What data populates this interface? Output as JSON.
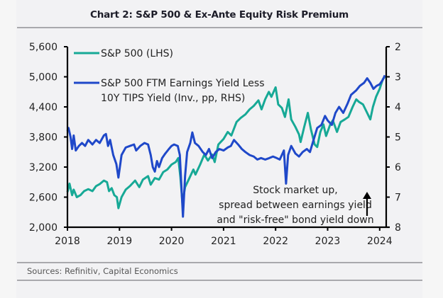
{
  "title": "Chart 2: S&P 500 & Ex-Ante Equity Risk Premium",
  "sources": "Sources: Refinitiv, Capital Economics",
  "chart_data": {
    "type": "line",
    "title": "Chart 2: S&P 500 & Ex-Ante Equity Risk Premium",
    "xlabel": "",
    "ylabel_left": "",
    "ylabel_right": "",
    "xlim": [
      2018.0,
      2024.15
    ],
    "x_ticks": [
      2018,
      2019,
      2020,
      2021,
      2022,
      2023,
      2024
    ],
    "x_tick_labels": [
      "2018",
      "2019",
      "2020",
      "2021",
      "2022",
      "2023",
      "2024"
    ],
    "ylim_left": [
      2000,
      5600
    ],
    "y_ticks_left": [
      2000,
      2600,
      3200,
      3800,
      4400,
      5000,
      5600
    ],
    "y_tick_labels_left": [
      "2,000",
      "2,600",
      "3,200",
      "3,800",
      "4,400",
      "5,000",
      "5,600"
    ],
    "ylim_right": [
      8,
      2
    ],
    "right_axis_inverted": true,
    "y_ticks_right": [
      2,
      3,
      4,
      5,
      6,
      7,
      8
    ],
    "y_tick_labels_right": [
      "2",
      "3",
      "4",
      "5",
      "6",
      "7",
      "8"
    ],
    "grid": false,
    "legend_position": "top-left",
    "series": [
      {
        "name": "S&P 500 (LHS)",
        "axis": "left",
        "color": "#17a996",
        "x": [
          2018.0,
          2018.04,
          2018.09,
          2018.12,
          2018.18,
          2018.25,
          2018.32,
          2018.4,
          2018.48,
          2018.55,
          2018.62,
          2018.7,
          2018.76,
          2018.8,
          2018.85,
          2018.9,
          2018.95,
          2018.98,
          2019.04,
          2019.12,
          2019.2,
          2019.3,
          2019.38,
          2019.45,
          2019.55,
          2019.6,
          2019.68,
          2019.76,
          2019.84,
          2019.92,
          2020.0,
          2020.08,
          2020.13,
          2020.17,
          2020.21,
          2020.26,
          2020.33,
          2020.42,
          2020.46,
          2020.55,
          2020.63,
          2020.7,
          2020.78,
          2020.83,
          2020.9,
          2021.0,
          2021.08,
          2021.15,
          2021.25,
          2021.33,
          2021.42,
          2021.5,
          2021.58,
          2021.67,
          2021.73,
          2021.8,
          2021.87,
          2021.92,
          2022.0,
          2022.05,
          2022.12,
          2022.18,
          2022.25,
          2022.3,
          2022.38,
          2022.45,
          2022.48,
          2022.55,
          2022.62,
          2022.68,
          2022.75,
          2022.8,
          2022.86,
          2022.92,
          2022.97,
          2023.05,
          2023.1,
          2023.18,
          2023.25,
          2023.33,
          2023.4,
          2023.48,
          2023.55,
          2023.6,
          2023.68,
          2023.75,
          2023.82,
          2023.87,
          2023.93,
          2024.0,
          2024.06,
          2024.1
        ],
        "values": [
          2700,
          2870,
          2640,
          2750,
          2600,
          2640,
          2720,
          2760,
          2720,
          2820,
          2860,
          2930,
          2900,
          2720,
          2780,
          2640,
          2600,
          2380,
          2600,
          2750,
          2820,
          2930,
          2800,
          2950,
          3020,
          2850,
          2980,
          2950,
          3100,
          3150,
          3250,
          3300,
          3380,
          3000,
          2480,
          2800,
          2950,
          3150,
          3050,
          3250,
          3450,
          3330,
          3450,
          3300,
          3650,
          3760,
          3900,
          3830,
          4100,
          4180,
          4250,
          4350,
          4420,
          4530,
          4350,
          4550,
          4700,
          4600,
          4790,
          4450,
          4380,
          4200,
          4550,
          4150,
          4000,
          3850,
          3700,
          4000,
          4280,
          3950,
          3650,
          3600,
          3900,
          4050,
          3820,
          4050,
          4130,
          3900,
          4100,
          4150,
          4200,
          4400,
          4550,
          4500,
          4450,
          4300,
          4150,
          4400,
          4600,
          4760,
          4950,
          5000
        ]
      },
      {
        "name": "S&P 500 FTM Earnings Yield Less 10Y TIPS Yield (Inv., pp, RHS)",
        "axis": "right",
        "color": "#1f48c9",
        "x": [
          2018.0,
          2018.02,
          2018.06,
          2018.09,
          2018.12,
          2018.16,
          2018.22,
          2018.28,
          2018.34,
          2018.4,
          2018.48,
          2018.55,
          2018.62,
          2018.7,
          2018.74,
          2018.78,
          2018.82,
          2018.88,
          2018.94,
          2018.98,
          2019.04,
          2019.12,
          2019.2,
          2019.28,
          2019.32,
          2019.4,
          2019.48,
          2019.55,
          2019.6,
          2019.64,
          2019.68,
          2019.72,
          2019.76,
          2019.82,
          2019.88,
          2019.95,
          2020.0,
          2020.05,
          2020.12,
          2020.16,
          2020.2,
          2020.22,
          2020.26,
          2020.3,
          2020.36,
          2020.4,
          2020.45,
          2020.52,
          2020.6,
          2020.66,
          2020.72,
          2020.78,
          2020.85,
          2020.92,
          2021.0,
          2021.08,
          2021.14,
          2021.2,
          2021.28,
          2021.35,
          2021.42,
          2021.5,
          2021.58,
          2021.65,
          2021.72,
          2021.8,
          2021.88,
          2021.95,
          2022.02,
          2022.08,
          2022.12,
          2022.16,
          2022.2,
          2022.24,
          2022.3,
          2022.38,
          2022.45,
          2022.52,
          2022.6,
          2022.66,
          2022.72,
          2022.8,
          2022.88,
          2022.95,
          2023.0,
          2023.08,
          2023.15,
          2023.22,
          2023.3,
          2023.38,
          2023.45,
          2023.55,
          2023.62,
          2023.7,
          2023.76,
          2023.82,
          2023.88,
          2023.94,
          2024.0,
          2024.06,
          2024.1
        ],
        "values": [
          4.8,
          4.7,
          5.0,
          5.4,
          4.95,
          5.45,
          5.3,
          5.2,
          5.3,
          5.1,
          5.25,
          5.1,
          5.2,
          4.95,
          4.9,
          5.3,
          5.1,
          5.6,
          5.9,
          6.35,
          5.6,
          5.35,
          5.3,
          5.25,
          5.45,
          5.3,
          5.2,
          5.25,
          5.6,
          6.0,
          6.15,
          5.8,
          6.0,
          5.7,
          5.55,
          5.4,
          5.3,
          5.25,
          5.3,
          5.6,
          7.0,
          7.65,
          6.3,
          5.5,
          5.2,
          4.85,
          5.2,
          5.3,
          5.5,
          5.6,
          5.4,
          5.7,
          5.5,
          5.4,
          5.45,
          5.35,
          5.3,
          5.1,
          5.25,
          5.4,
          5.5,
          5.6,
          5.65,
          5.75,
          5.7,
          5.75,
          5.7,
          5.65,
          5.7,
          5.75,
          5.6,
          5.45,
          6.55,
          5.6,
          5.3,
          5.55,
          5.65,
          5.5,
          5.4,
          5.5,
          5.15,
          4.7,
          4.6,
          4.3,
          4.45,
          4.6,
          4.2,
          4.0,
          4.2,
          3.9,
          3.6,
          3.45,
          3.3,
          3.2,
          3.05,
          3.2,
          3.4,
          3.3,
          3.25,
          3.1,
          2.95
        ]
      }
    ],
    "legend": [
      {
        "label": "S&P 500 (LHS)"
      },
      {
        "label_lines": [
          "S&P 500 FTM Earnings Yield Less",
          "10Y TIPS Yield (Inv., pp, RHS)"
        ]
      }
    ],
    "annotation": {
      "lines": [
        "Stock market up,",
        "spread between earnings yield",
        "and \"risk-free\" bond yield down"
      ],
      "arrow": "up"
    }
  }
}
